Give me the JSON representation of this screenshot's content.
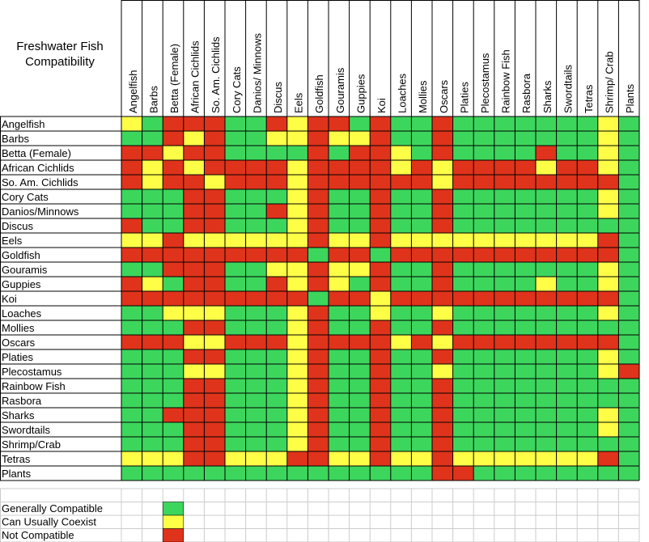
{
  "chart_data": {
    "type": "table",
    "title": [
      "Freshwater Fish",
      "Compatibility"
    ],
    "columns": [
      "Angelfish",
      "Barbs",
      "Betta (Female)",
      "African Cichlids",
      "So. Am. Cichlids",
      "Cory Cats",
      "Danios/ Minnows",
      "Discus",
      "Eels",
      "Goldfish",
      "Gouramis",
      "Guppies",
      "Koi",
      "Loaches",
      "Mollies",
      "Oscars",
      "Platies",
      "Plecostamus",
      "Rainbow Fish",
      "Rasbora",
      "Sharks",
      "Swordtails",
      "Tetras",
      "Shrimp/ Crab",
      "Plants"
    ],
    "rows": [
      "Angelfish",
      "Barbs",
      "Betta (Female)",
      "African Cichlids",
      "So. Am. Cichlids",
      "Cory Cats",
      "Danios/Minnows",
      "Discus",
      "Eels",
      "Goldfish",
      "Gouramis",
      "Guppies",
      "Koi",
      "Loaches",
      "Mollies",
      "Oscars",
      "Platies",
      "Plecostamus",
      "Rainbow Fish",
      "Rasbora",
      "Sharks",
      "Swordtails",
      "Shrimp/Crab",
      "Tetras",
      "Plants"
    ],
    "cell_codes": {
      "G": "Generally Compatible",
      "Y": "Can Usually Coexist",
      "R": "Not Compatible"
    },
    "cells": [
      "YGRRRGGRYRRGRGGRGGGGGGGYG",
      "GGRYRGGYYRYYRGGRGGGGGGGYG",
      "RRYRRGGGGRGRRYGRGGGGRGGYG",
      "RYRYRRRRYRRRRYRYRRRRYRRYG",
      "RYRRYRRRYRRRRRRYRRRRRRRRG",
      "GGGRRGGGYRGGRGGRGGGGGGGYG",
      "GGGRRGGRYRGGRGGRGGGGGGGYG",
      "RGGRRGGGYRGGRGGRGGGGGGGGG",
      "YYRYYYYYYRYYRYYYYYYYYYYRG",
      "RRRRRRRRRGRRGRRRRRRRRRRRG",
      "GGRRRGGYYRYYRGGRGGGGGGGYG",
      "RYGRRGGRYRYGRGGRGGGGYGGYG",
      "RRRRRRRRRGRRYRRRRRRRRRRRG",
      "GGYYYGGGYRGGYGGYGGGGGGGYG",
      "GGGRRGGGYRGGRGGRGGGGGGGGG",
      "RRRYYRRRYRRRRYRYRRRRRRRRG",
      "GGGRRGGGYRGGRGGRGGGGGGGYG",
      "GGGYYGGGYRGGRGGYGGGGGGGYR",
      "GGGRRGGGYRGGRGGRGGGGGGGGG",
      "GGGRRGGGYRGGRGGRGGGGGGGGG",
      "GGRRRGGGYRGGRGGRGGGGGGGYG",
      "GGGRRGGGYRGGRGGRGGGGGGGYG",
      "GGGRRGGGYRGGRGGRGGGGGGGGG",
      "YYYRRYYYRRYYRYYRYYYYYYYRG",
      "GGGGGGGGGGGGGGGRRGGGGGGGG"
    ],
    "legend": [
      {
        "code": "G",
        "label": "Generally Compatible"
      },
      {
        "code": "Y",
        "label": "Can Usually Coexist"
      },
      {
        "code": "R",
        "label": "Not Compatible"
      }
    ],
    "legend_placement": "bottom-left"
  },
  "colors": {
    "G": "#3dd65d",
    "Y": "#fffe47",
    "R": "#e0331b",
    "grid": "#000000",
    "legend_grid": "#cccccc"
  }
}
